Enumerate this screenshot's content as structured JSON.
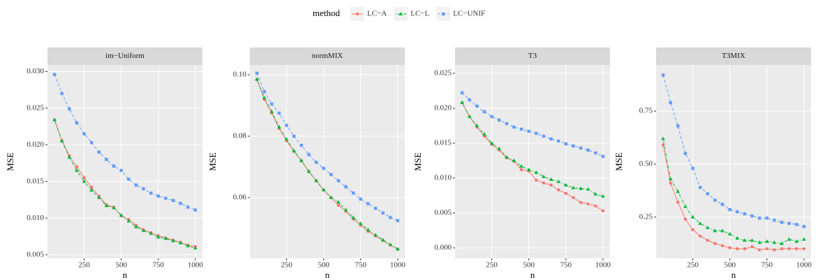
{
  "chart_data": [
    {
      "type": "line",
      "title": "im−Uniform",
      "x_label": "n",
      "y_label": "MSE",
      "legend_title": "method",
      "x": [
        50,
        100,
        150,
        200,
        250,
        300,
        350,
        400,
        450,
        500,
        550,
        600,
        650,
        700,
        750,
        800,
        850,
        900,
        950,
        1000
      ],
      "xlim": [
        2.5,
        1047.5
      ],
      "xticks": [
        250,
        500,
        750,
        1000
      ],
      "ylim": [
        0.0045,
        0.0309
      ],
      "yticks": [
        {
          "value": 0.005,
          "label": "0.005"
        },
        {
          "value": 0.01,
          "label": "0.010"
        },
        {
          "value": 0.015,
          "label": "0.015"
        },
        {
          "value": 0.02,
          "label": "0.020"
        },
        {
          "value": 0.025,
          "label": "0.025"
        },
        {
          "value": 0.03,
          "label": "0.030"
        }
      ],
      "grid": true,
      "series": [
        {
          "name": "LC−A",
          "color": "#F8766D",
          "marker": "circle",
          "dash": "solid",
          "values": [
            0.0234,
            0.0206,
            0.0185,
            0.017,
            0.0155,
            0.0142,
            0.013,
            0.0118,
            0.0115,
            0.0103,
            0.0098,
            0.009,
            0.0084,
            0.008,
            0.0076,
            0.0073,
            0.007,
            0.0067,
            0.0063,
            0.0061
          ]
        },
        {
          "name": "LC−L",
          "color": "#00BA38",
          "marker": "triangle",
          "dash": "dotdash",
          "values": [
            0.0234,
            0.0205,
            0.0183,
            0.0165,
            0.015,
            0.0138,
            0.0128,
            0.0117,
            0.0114,
            0.0104,
            0.0096,
            0.0088,
            0.0083,
            0.0079,
            0.0074,
            0.0072,
            0.0069,
            0.0066,
            0.0062,
            0.0059
          ]
        },
        {
          "name": "LC−UNIF",
          "color": "#619CFF",
          "marker": "square",
          "dash": "dashed",
          "values": [
            0.0296,
            0.027,
            0.0249,
            0.023,
            0.0215,
            0.0203,
            0.019,
            0.018,
            0.0171,
            0.0165,
            0.0153,
            0.0145,
            0.014,
            0.0134,
            0.013,
            0.0127,
            0.0124,
            0.012,
            0.0115,
            0.0111
          ]
        }
      ]
    },
    {
      "type": "line",
      "title": "normMIX",
      "x_label": "n",
      "y_label": "MSE",
      "x": [
        50,
        100,
        150,
        200,
        250,
        300,
        350,
        400,
        450,
        500,
        550,
        600,
        650,
        700,
        750,
        800,
        850,
        900,
        950,
        1000
      ],
      "xlim": [
        2.5,
        1047.5
      ],
      "xticks": [
        250,
        500,
        750,
        1000
      ],
      "ylim": [
        0.0402,
        0.1032
      ],
      "yticks": [
        0.06,
        0.08,
        {
          "value": 0.1,
          "label": "0.10"
        }
      ],
      "grid": true,
      "series": [
        {
          "name": "LC−A",
          "color": "#F8766D",
          "marker": "circle",
          "dash": "solid",
          "values": [
            0.0985,
            0.092,
            0.0875,
            0.0825,
            0.0785,
            0.075,
            0.072,
            0.0685,
            0.0655,
            0.0625,
            0.06,
            0.0575,
            0.0555,
            0.053,
            0.051,
            0.049,
            0.0475,
            0.046,
            0.0445,
            0.0432
          ]
        },
        {
          "name": "LC−L",
          "color": "#00BA38",
          "marker": "triangle",
          "dash": "dotdash",
          "values": [
            0.0985,
            0.0925,
            0.088,
            0.083,
            0.079,
            0.0752,
            0.072,
            0.0685,
            0.0655,
            0.0625,
            0.06,
            0.0585,
            0.056,
            0.0535,
            0.0515,
            0.0495,
            0.0478,
            0.0462,
            0.0447,
            0.0432
          ]
        },
        {
          "name": "LC−UNIF",
          "color": "#619CFF",
          "marker": "square",
          "dash": "dashed",
          "values": [
            0.1005,
            0.0945,
            0.0905,
            0.0875,
            0.0835,
            0.08,
            0.077,
            0.074,
            0.0715,
            0.0695,
            0.0675,
            0.0655,
            0.0635,
            0.0615,
            0.0595,
            0.058,
            0.0565,
            0.055,
            0.0535,
            0.0525
          ]
        }
      ]
    },
    {
      "type": "line",
      "title": "T3",
      "x_label": "n",
      "y_label": "MSE",
      "x": [
        50,
        100,
        150,
        200,
        250,
        300,
        350,
        400,
        450,
        500,
        550,
        600,
        650,
        700,
        750,
        800,
        850,
        900,
        950,
        1000
      ],
      "xlim": [
        2.5,
        1047.5
      ],
      "xticks": [
        250,
        500,
        750,
        1000
      ],
      "ylim": [
        -0.0015,
        0.0262
      ],
      "yticks": [
        {
          "value": 0,
          "label": "0.000"
        },
        {
          "value": 0.005,
          "label": "0.005"
        },
        {
          "value": 0.01,
          "label": "0.010"
        },
        {
          "value": 0.015,
          "label": "0.015"
        },
        {
          "value": 0.02,
          "label": "0.020"
        },
        {
          "value": 0.025,
          "label": "0.025"
        }
      ],
      "grid": true,
      "series": [
        {
          "name": "LC−A",
          "color": "#F8766D",
          "marker": "circle",
          "dash": "solid",
          "values": [
            0.0208,
            0.0188,
            0.0173,
            0.016,
            0.0148,
            0.014,
            0.0129,
            0.0124,
            0.0112,
            0.011,
            0.0097,
            0.0093,
            0.009,
            0.0083,
            0.0078,
            0.0072,
            0.0065,
            0.0063,
            0.006,
            0.0053
          ]
        },
        {
          "name": "LC−L",
          "color": "#00BA38",
          "marker": "triangle",
          "dash": "dotdash",
          "values": [
            0.0208,
            0.0188,
            0.0175,
            0.0163,
            0.015,
            0.0142,
            0.013,
            0.0125,
            0.0117,
            0.0112,
            0.0108,
            0.0102,
            0.0098,
            0.0095,
            0.009,
            0.0086,
            0.0085,
            0.0084,
            0.0077,
            0.0074
          ]
        },
        {
          "name": "LC−UNIF",
          "color": "#619CFF",
          "marker": "square",
          "dash": "dashed",
          "values": [
            0.0222,
            0.0212,
            0.0203,
            0.0195,
            0.0188,
            0.0183,
            0.0178,
            0.0173,
            0.017,
            0.0167,
            0.0164,
            0.016,
            0.0156,
            0.0153,
            0.0149,
            0.0146,
            0.0143,
            0.014,
            0.0136,
            0.0131
          ]
        }
      ]
    },
    {
      "type": "line",
      "title": "T3MIX",
      "x_label": "n",
      "y_label": "MSE",
      "x": [
        50,
        100,
        150,
        200,
        250,
        300,
        350,
        400,
        450,
        500,
        550,
        600,
        650,
        700,
        750,
        800,
        850,
        900,
        950,
        1000
      ],
      "xlim": [
        2.5,
        1047.5
      ],
      "xticks": [
        250,
        500,
        750,
        1000
      ],
      "ylim": [
        0.055,
        0.968
      ],
      "yticks": [
        0.25,
        {
          "value": 0.5,
          "label": "0.50"
        },
        0.75
      ],
      "grid": true,
      "series": [
        {
          "name": "LC−A",
          "color": "#F8766D",
          "marker": "circle",
          "dash": "solid",
          "values": [
            0.59,
            0.41,
            0.32,
            0.24,
            0.19,
            0.16,
            0.14,
            0.125,
            0.115,
            0.105,
            0.1,
            0.1,
            0.11,
            0.095,
            0.1,
            0.095,
            0.1,
            0.1,
            0.1,
            0.1
          ]
        },
        {
          "name": "LC−L",
          "color": "#00BA38",
          "marker": "triangle",
          "dash": "dotdash",
          "values": [
            0.62,
            0.43,
            0.37,
            0.3,
            0.25,
            0.22,
            0.2,
            0.185,
            0.185,
            0.17,
            0.15,
            0.14,
            0.14,
            0.13,
            0.135,
            0.13,
            0.125,
            0.145,
            0.135,
            0.145
          ]
        },
        {
          "name": "LC−UNIF",
          "color": "#619CFF",
          "marker": "square",
          "dash": "dashed",
          "values": [
            0.92,
            0.79,
            0.68,
            0.55,
            0.48,
            0.39,
            0.36,
            0.33,
            0.31,
            0.285,
            0.275,
            0.265,
            0.255,
            0.245,
            0.245,
            0.235,
            0.225,
            0.22,
            0.215,
            0.205
          ]
        }
      ]
    }
  ]
}
